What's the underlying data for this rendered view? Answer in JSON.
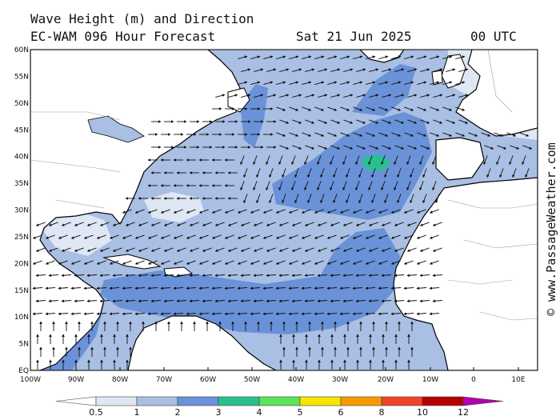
{
  "header": {
    "title": "Wave Height (m) and Direction",
    "model": "EC-WAM 096 Hour Forecast",
    "date": "Sat 21 Jun 2025",
    "time": "00 UTC"
  },
  "map": {
    "region": "North Atlantic",
    "lat_labels": [
      "60N",
      "55N",
      "50N",
      "45N",
      "40N",
      "35N",
      "30N",
      "25N",
      "20N",
      "15N",
      "10N",
      "5N",
      "EQ"
    ],
    "lon_labels": [
      "100W",
      "90W",
      "80W",
      "70W",
      "60W",
      "50W",
      "40W",
      "30W",
      "20W",
      "10W",
      "0",
      "10E"
    ],
    "land_color": "#ffffff",
    "coast_color": "#000000",
    "border_color": "#9a9a9a",
    "arrow_color": "#111111"
  },
  "legend": {
    "labels": [
      "0.5",
      "1",
      "2",
      "3",
      "4",
      "5",
      "6",
      "8",
      "10",
      "12"
    ],
    "colors": [
      "#dfe6f4",
      "#a9bfe3",
      "#6a92d8",
      "#28c18e",
      "#5ce35a",
      "#f6e600",
      "#f69a00",
      "#f0442a",
      "#b60000",
      "#b000b0"
    ]
  },
  "credit": "© www.PassageWeather.com"
}
